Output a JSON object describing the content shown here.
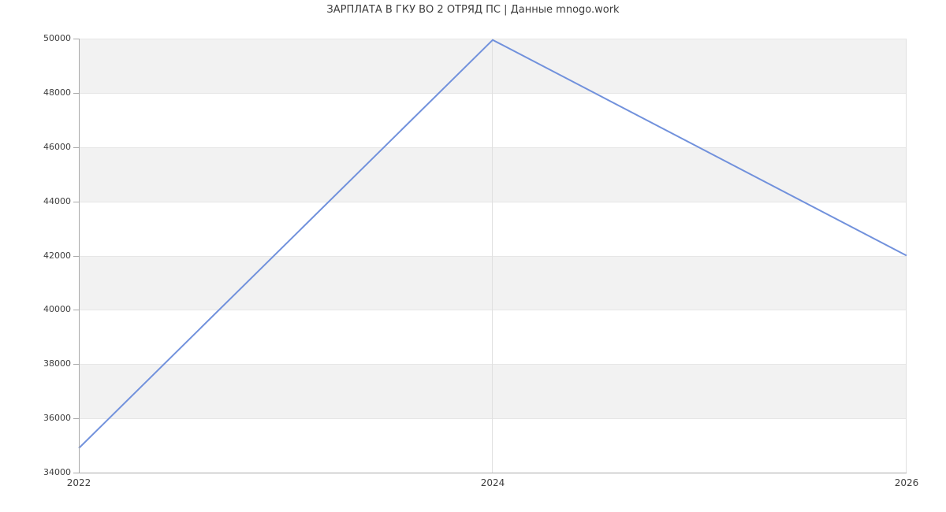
{
  "chart_data": {
    "type": "line",
    "title": "ЗАРПЛАТА В ГКУ ВО 2 ОТРЯД ПС | Данные mnogo.work",
    "x": [
      2022,
      2024,
      2026
    ],
    "values": [
      34900,
      49950,
      42000
    ],
    "xticks": [
      "2022",
      "2024",
      "2026"
    ],
    "xtick_positions": [
      2022,
      2024,
      2026
    ],
    "xlim": [
      2022,
      2026
    ],
    "yticks": [
      "34000",
      "36000",
      "38000",
      "40000",
      "42000",
      "44000",
      "46000",
      "48000",
      "50000"
    ],
    "ytick_values": [
      34000,
      36000,
      38000,
      40000,
      42000,
      44000,
      46000,
      48000,
      50000
    ],
    "ylim": [
      34000,
      50000
    ],
    "xlabel": "",
    "ylabel": "",
    "legend": "none",
    "grid": "alternating horizontal bands, gridlines at each y tick, vertical gridlines at 2024 and 2026",
    "colors": {
      "line": "#7191dc",
      "band": "#f2f2f2",
      "hgrid": "#e6e6e6",
      "vgrid": "#e0e0e0",
      "axis": "#a9a9a9",
      "text": "#3d3d3d"
    }
  }
}
